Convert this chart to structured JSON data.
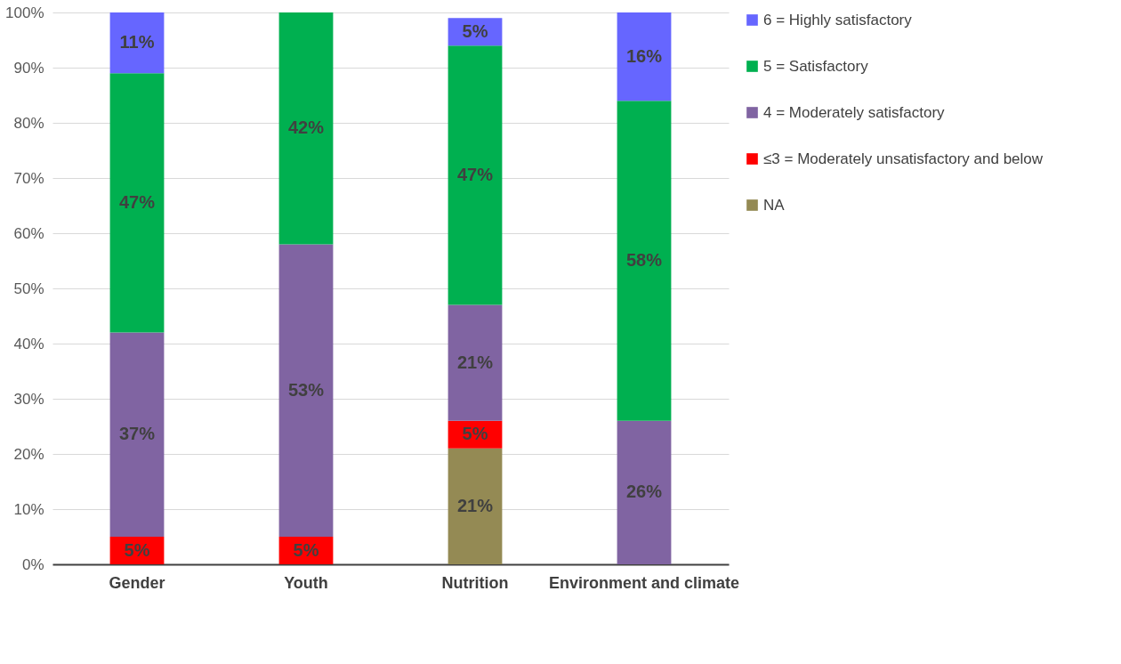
{
  "chart_data": {
    "type": "bar",
    "stacked": true,
    "categories": [
      "Gender",
      "Youth",
      "Nutrition",
      "Environment and climate"
    ],
    "series": [
      {
        "name": "NA",
        "color": "#948a54",
        "values": [
          null,
          null,
          21,
          null
        ],
        "value_labels": [
          null,
          null,
          "21%",
          null
        ]
      },
      {
        "name": "≤3 =  Moderately unsatisfactory and below",
        "color": "#ff0000",
        "values": [
          5,
          5,
          5,
          null
        ],
        "value_labels": [
          "5%",
          "5%",
          "5%",
          null
        ]
      },
      {
        "name": "4 = Moderately satisfactory",
        "color": "#8064a2",
        "values": [
          37,
          53,
          21,
          26
        ],
        "value_labels": [
          "37%",
          "53%",
          "21%",
          "26%"
        ]
      },
      {
        "name": "5  = Satisfactory",
        "color": "#00b050",
        "values": [
          47,
          42,
          47,
          58
        ],
        "value_labels": [
          "47%",
          "42%",
          "47%",
          "58%"
        ]
      },
      {
        "name": "6 = Highly satisfactory",
        "color": "#6666ff",
        "values": [
          11,
          null,
          5,
          16
        ],
        "value_labels": [
          "11%",
          null,
          "5%",
          "16%"
        ]
      }
    ],
    "ylim": [
      0,
      100
    ],
    "yticks": [
      {
        "value": 0,
        "label": "0%"
      },
      {
        "value": 10,
        "label": "10%"
      },
      {
        "value": 20,
        "label": "20%"
      },
      {
        "value": 30,
        "label": "30%"
      },
      {
        "value": 40,
        "label": "40%"
      },
      {
        "value": 50,
        "label": "50%"
      },
      {
        "value": 60,
        "label": "60%"
      },
      {
        "value": 70,
        "label": "70%"
      },
      {
        "value": 80,
        "label": "80%"
      },
      {
        "value": 90,
        "label": "90%"
      },
      {
        "value": 100,
        "label": "100%"
      }
    ],
    "grid": "y",
    "legend": "right"
  }
}
